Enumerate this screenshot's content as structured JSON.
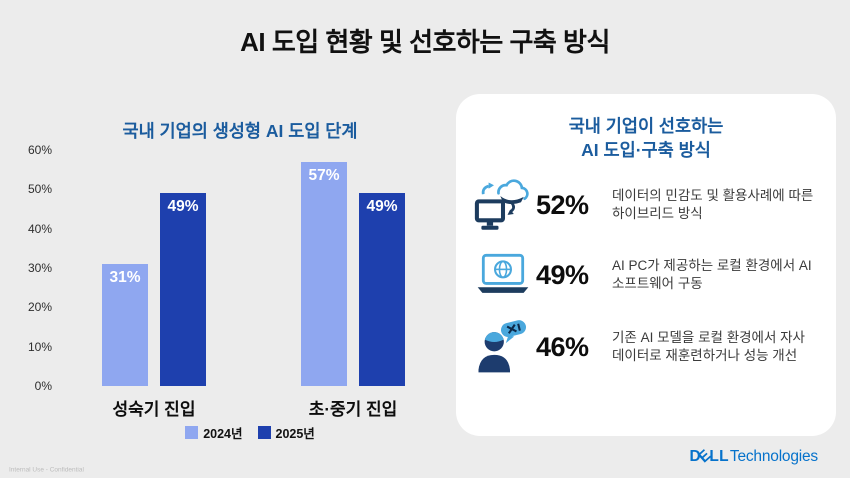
{
  "page": {
    "title": "AI 도입 현황 및 선호하는 구축 방식",
    "footer_note": "Internal Use - Confidential",
    "brand": {
      "d": "D",
      "e": "E",
      "ll": "LL",
      "suffix": "Technologies",
      "color": "#0672cb"
    }
  },
  "chart_data": {
    "type": "bar",
    "title": "국내 기업의 생성형 AI 도입 단계",
    "categories": [
      "성숙기 진입",
      "초·중기 진입"
    ],
    "series": [
      {
        "name": "2024년",
        "color": "#8fa7f0",
        "values": [
          31,
          57
        ]
      },
      {
        "name": "2025년",
        "color": "#1e40ae",
        "values": [
          49,
          49
        ]
      }
    ],
    "value_suffix": "%",
    "ylim": [
      0,
      60
    ],
    "yticks": [
      "0%",
      "10%",
      "20%",
      "30%",
      "40%",
      "50%",
      "60%"
    ],
    "grid": false,
    "legend_position": "bottom"
  },
  "panel": {
    "title_line1": "국내 기업이 선호하는",
    "title_line2": "AI 도입·구축 방식",
    "items": [
      {
        "icon": "hybrid-cloud-desktop-icon",
        "value": "52%",
        "text": "데이터의 민감도 및 활용사례에 따른 하이브리드 방식"
      },
      {
        "icon": "ai-pc-laptop-icon",
        "value": "49%",
        "text": "AI PC가 제공하는 로컬 환경에서 AI 소프트웨어 구동"
      },
      {
        "icon": "person-retrain-icon",
        "value": "46%",
        "text": "기존 AI 모델을 로컬 환경에서 자사 데이터로 재훈련하거나 성능 개선"
      }
    ]
  },
  "colors": {
    "background": "#ececec",
    "panel_background": "#ffffff",
    "heading_blue": "#1b5c9e",
    "bar_2024": "#8fa7f0",
    "bar_2025": "#1e40ae",
    "icon_dark": "#1d3c5e",
    "icon_light": "#4aa8dd",
    "dell_blue": "#0672cb"
  }
}
